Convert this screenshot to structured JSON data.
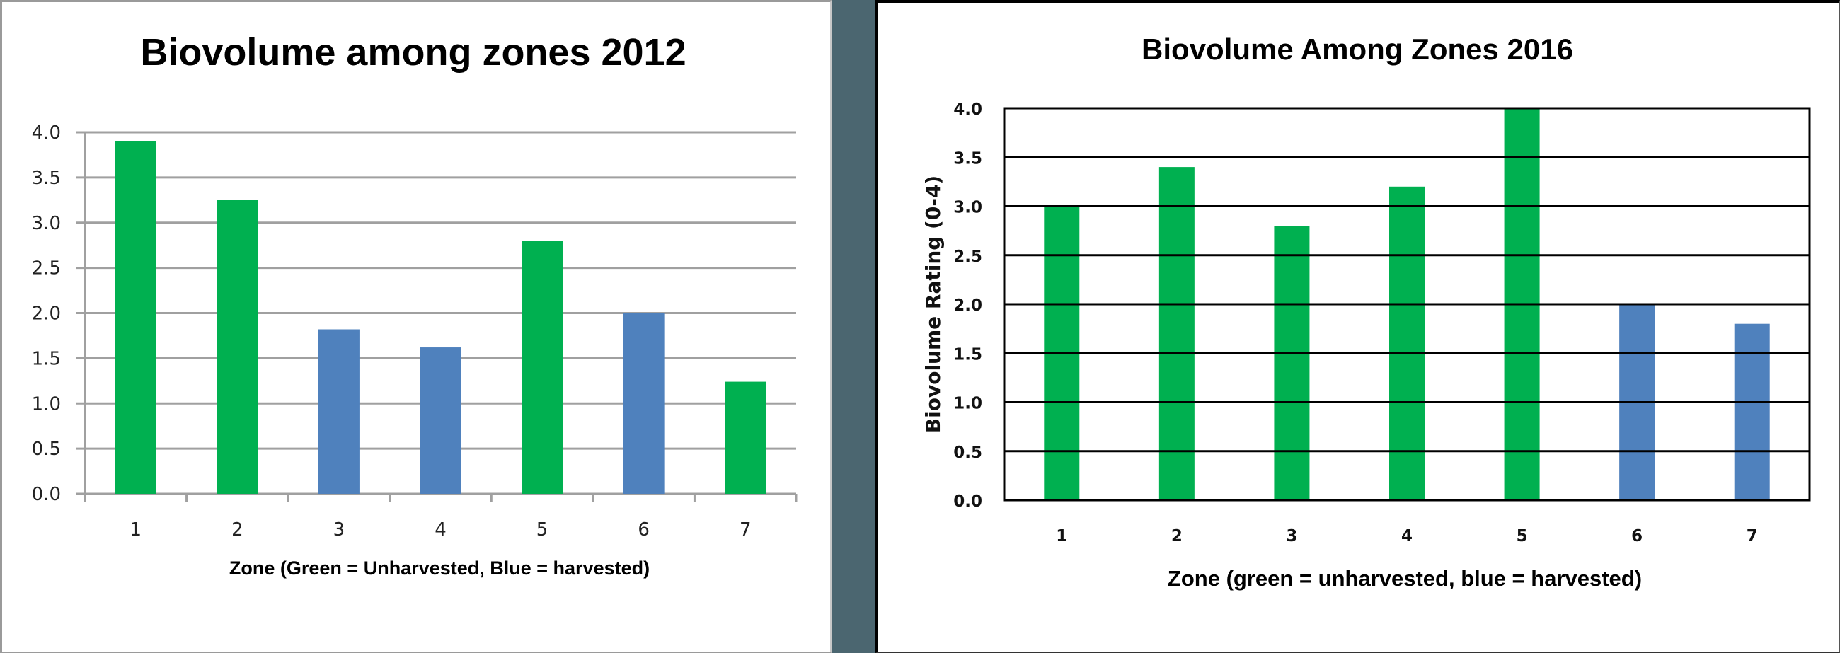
{
  "colors": {
    "unharvested": "#00B050",
    "harvested": "#4F81BD",
    "divider": "#4B6670",
    "grid_left": "#A0A0A0",
    "grid_right": "#000000"
  },
  "chart_data": [
    {
      "type": "bar",
      "title": "Biovolume among zones 2012",
      "xlabel": "Zone (Green = Unharvested, Blue = harvested)",
      "ylabel": "",
      "categories": [
        "1",
        "2",
        "3",
        "4",
        "5",
        "6",
        "7"
      ],
      "values": [
        3.9,
        3.25,
        1.82,
        1.62,
        2.8,
        2.0,
        1.24
      ],
      "bar_status": [
        "unharvested",
        "unharvested",
        "harvested",
        "harvested",
        "unharvested",
        "harvested",
        "unharvested"
      ],
      "ylim": [
        0,
        4
      ],
      "yticks": [
        "0.0",
        "0.5",
        "1.0",
        "1.5",
        "2.0",
        "2.5",
        "3.0",
        "3.5",
        "4.0"
      ],
      "grid": true,
      "legend": "none"
    },
    {
      "type": "bar",
      "title": "Biovolume Among Zones 2016",
      "xlabel": "Zone (green = unharvested, blue = harvested)",
      "ylabel": "Biovolume Rating (0-4)",
      "categories": [
        "1",
        "2",
        "3",
        "4",
        "5",
        "6",
        "7"
      ],
      "values": [
        3.0,
        3.4,
        2.8,
        3.2,
        4.0,
        2.0,
        1.8
      ],
      "bar_status": [
        "unharvested",
        "unharvested",
        "unharvested",
        "unharvested",
        "unharvested",
        "harvested",
        "harvested"
      ],
      "ylim": [
        0,
        4
      ],
      "yticks": [
        "0.0",
        "0.5",
        "1.0",
        "1.5",
        "2.0",
        "2.5",
        "3.0",
        "3.5",
        "4.0"
      ],
      "grid": true,
      "legend": "none"
    }
  ]
}
